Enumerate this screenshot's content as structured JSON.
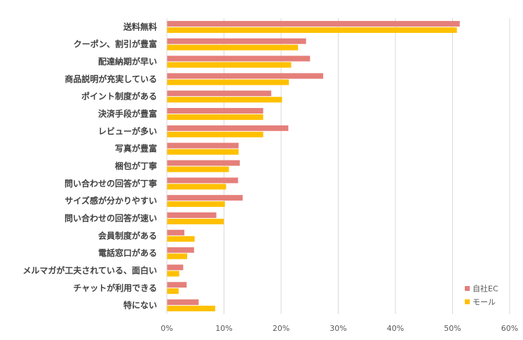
{
  "chart_data": {
    "type": "bar",
    "orientation": "horizontal",
    "categories": [
      "送料無料",
      "クーポン、割引が豊富",
      "配達納期が早い",
      "商品説明が充実している",
      "ポイント制度がある",
      "決済手段が豊富",
      "レビューが多い",
      "写真が豊富",
      "梱包が丁寧",
      "問い合わせの回答が丁寧",
      "サイズ感が分かりやすい",
      "問い合わせの回答が速い",
      "会員制度がある",
      "電話窓口がある",
      "メルマガが工夫されている、面白い",
      "チャットが利用できる",
      "特にない"
    ],
    "series": [
      {
        "name": "自社EC",
        "color": "#e57f7a",
        "values": [
          51.2,
          24.3,
          25.0,
          27.3,
          18.2,
          16.8,
          21.2,
          12.5,
          12.7,
          12.4,
          13.2,
          8.6,
          3.0,
          4.7,
          2.8,
          3.4,
          5.5
        ]
      },
      {
        "name": "モール",
        "color": "#ffc000",
        "values": [
          50.7,
          22.9,
          21.7,
          21.3,
          20.1,
          16.8,
          16.8,
          12.5,
          10.8,
          10.3,
          10.1,
          9.9,
          4.8,
          3.5,
          2.1,
          2.0,
          8.4
        ]
      }
    ],
    "xlim": [
      0,
      60
    ],
    "xticks": [
      "0%",
      "10%",
      "20%",
      "30%",
      "40%",
      "50%",
      "60%"
    ],
    "grid": true,
    "legend_position": "bottom-right"
  }
}
